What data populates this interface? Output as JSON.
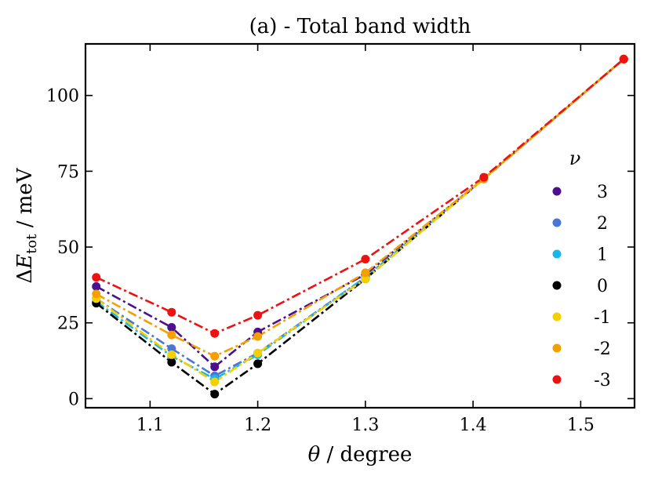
{
  "chart_data": {
    "type": "line",
    "title": "(a) - Total band width",
    "xlabel": "θ / degree",
    "ylabel": "ΔE_tot / meV",
    "ylabel_parts": {
      "delta": "Δ",
      "E": "E",
      "sub": "tot",
      "unit": " / meV"
    },
    "xlim": [
      1.04,
      1.55
    ],
    "ylim": [
      -3,
      117
    ],
    "xticks": [
      1.1,
      1.2,
      1.3,
      1.4,
      1.5
    ],
    "xtick_labels": [
      "1.1",
      "1.2",
      "1.3",
      "1.4",
      "1.5"
    ],
    "yticks": [
      0,
      25,
      50,
      75,
      100
    ],
    "ytick_labels": [
      "0",
      "25",
      "50",
      "75",
      "100"
    ],
    "x": [
      1.05,
      1.12,
      1.16,
      1.2,
      1.3,
      1.41,
      1.54
    ],
    "legend_title": "ν",
    "legend_position": "right",
    "series": [
      {
        "name": "3",
        "color": "#4b0f8f",
        "values": [
          37,
          23.5,
          10.5,
          22,
          41,
          72.5,
          112
        ]
      },
      {
        "name": "2",
        "color": "#4a76d8",
        "values": [
          33,
          16.5,
          7.5,
          15,
          40,
          72.5,
          112
        ]
      },
      {
        "name": "1",
        "color": "#1ab8ea",
        "values": [
          32,
          14,
          6.5,
          14.5,
          40,
          72.5,
          112
        ]
      },
      {
        "name": "0",
        "color": "#000000",
        "values": [
          31.5,
          12,
          1.5,
          11.5,
          39.5,
          72.5,
          112
        ]
      },
      {
        "name": "-1",
        "color": "#f5d000",
        "values": [
          33,
          14.5,
          5.5,
          15,
          39.5,
          72.5,
          112
        ]
      },
      {
        "name": "-2",
        "color": "#f5a000",
        "values": [
          34.5,
          21,
          14,
          20.5,
          41.5,
          72.5,
          112
        ]
      },
      {
        "name": "-3",
        "color": "#ee1111",
        "values": [
          40,
          28.5,
          21.5,
          27.5,
          46,
          73,
          112
        ]
      }
    ]
  }
}
